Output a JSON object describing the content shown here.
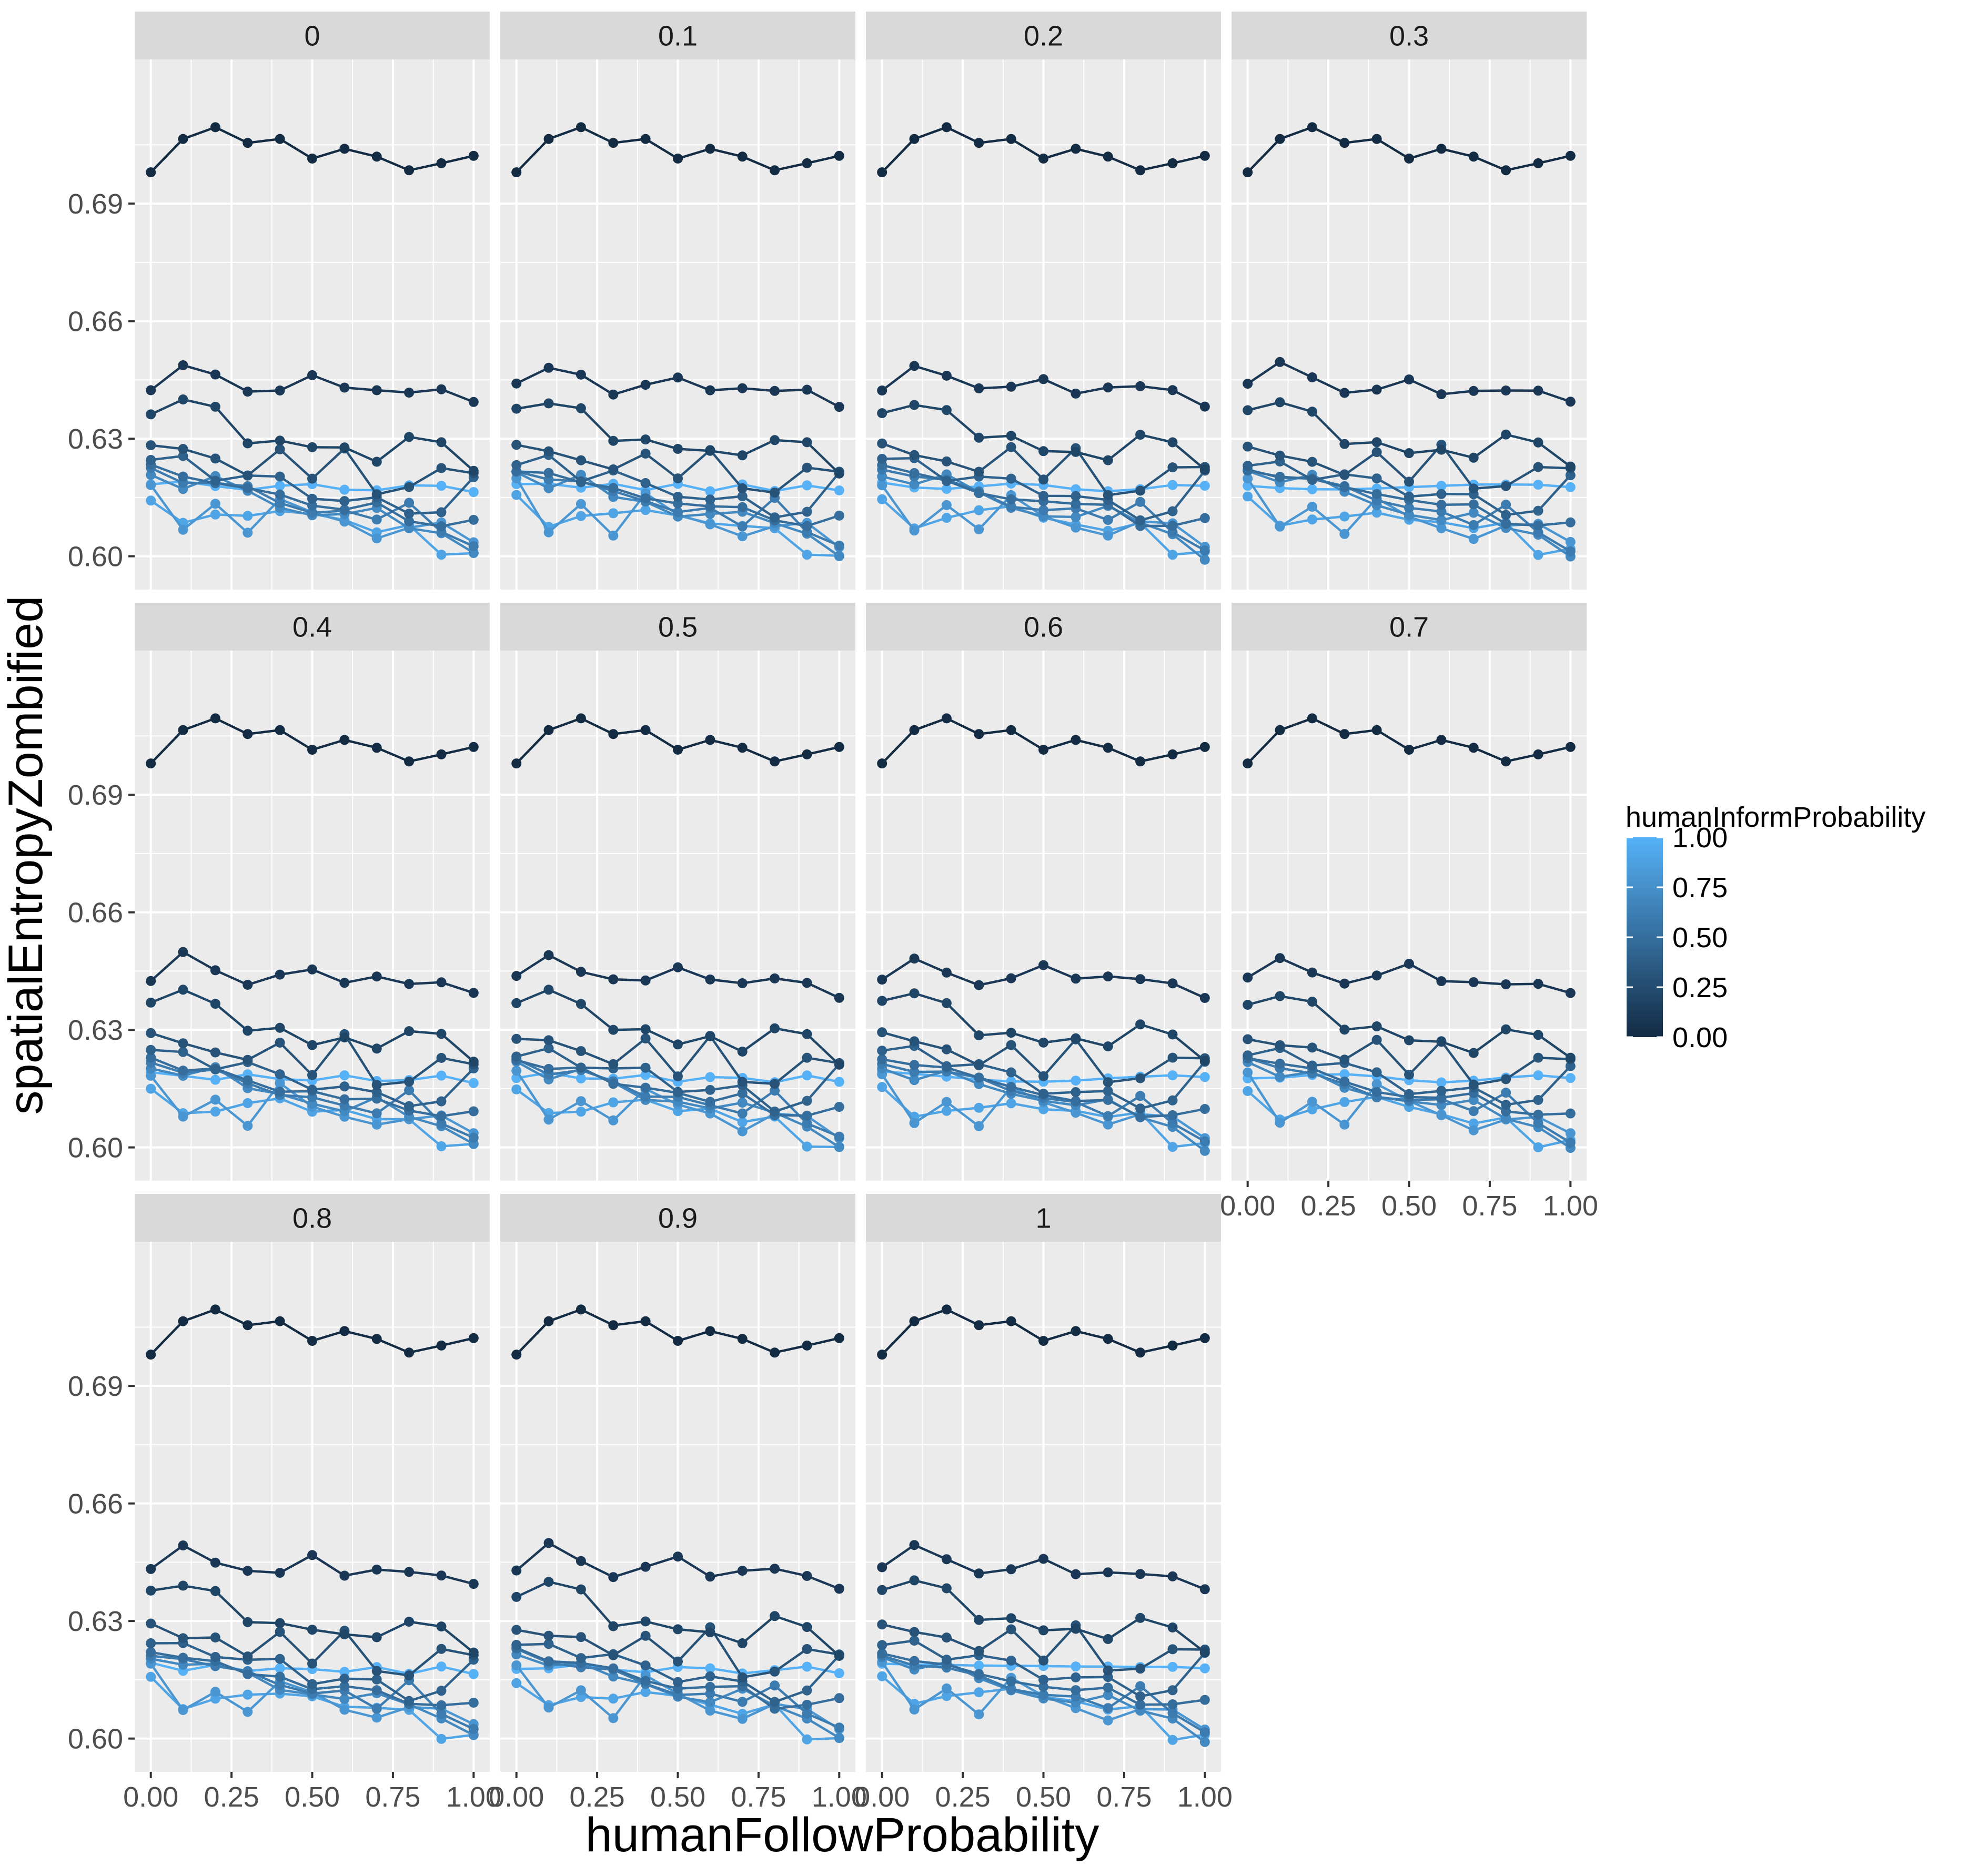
{
  "chart_data": {
    "type": "line",
    "xlabel": "humanFollowProbability",
    "ylabel": "spatialEntropyZombified",
    "x": [
      0,
      0.1,
      0.2,
      0.3,
      0.4,
      0.5,
      0.6,
      0.7,
      0.8,
      0.9,
      1.0
    ],
    "xlim": [
      -0.05,
      1.05
    ],
    "ylim": [
      0.5915,
      0.7268
    ],
    "x_ticks": [
      0,
      0.25,
      0.5,
      0.75,
      1.0
    ],
    "x_tick_labels": [
      "0.00",
      "0.25",
      "0.50",
      "0.75",
      "1.00"
    ],
    "y_ticks": [
      0.6,
      0.63,
      0.66,
      0.69
    ],
    "y_tick_labels": [
      "0.60",
      "0.63",
      "0.66",
      "0.69"
    ],
    "grid": true,
    "facet_variable": "humanInformProbability",
    "facets": [
      "0",
      "0.1",
      "0.2",
      "0.3",
      "0.4",
      "0.5",
      "0.6",
      "0.7",
      "0.8",
      "0.9",
      "1"
    ],
    "legend": {
      "title": "humanInformProbability",
      "position": "right",
      "type": "colorbar",
      "labels": [
        "1.00",
        "0.75",
        "0.50",
        "0.25",
        "0.00"
      ],
      "low_color": "#132B43",
      "high_color": "#56B1F7"
    },
    "series": [
      {
        "color_value": 0.0,
        "values": [
          0.698,
          0.7065,
          0.7095,
          0.7055,
          0.7065,
          0.7015,
          0.704,
          0.702,
          0.6985,
          0.7003,
          0.7022
        ]
      },
      {
        "color_value": 0.1,
        "values": [
          0.6432,
          0.649,
          0.6455,
          0.642,
          0.6432,
          0.646,
          0.6422,
          0.6428,
          0.6425,
          0.642,
          0.6388
        ]
      },
      {
        "color_value": 0.2,
        "values": [
          0.637,
          0.6395,
          0.6375,
          0.6295,
          0.63,
          0.627,
          0.6275,
          0.625,
          0.6305,
          0.6282,
          0.622
        ]
      },
      {
        "color_value": 0.3,
        "values": [
          0.6285,
          0.6265,
          0.625,
          0.6215,
          0.627,
          0.619,
          0.628,
          0.6165,
          0.617,
          0.622,
          0.622
        ]
      },
      {
        "color_value": 0.4,
        "values": [
          0.624,
          0.625,
          0.62,
          0.621,
          0.6195,
          0.6145,
          0.615,
          0.615,
          0.61,
          0.6115,
          0.621
        ]
      },
      {
        "color_value": 0.5,
        "values": [
          0.6225,
          0.6205,
          0.6195,
          0.617,
          0.615,
          0.6135,
          0.6125,
          0.613,
          0.6085,
          0.6085,
          0.6095
        ]
      },
      {
        "color_value": 0.6,
        "values": [
          0.622,
          0.6195,
          0.619,
          0.617,
          0.6135,
          0.612,
          0.6115,
          0.6085,
          0.614,
          0.607,
          0.602
        ]
      },
      {
        "color_value": 0.7,
        "values": [
          0.621,
          0.618,
          0.62,
          0.616,
          0.613,
          0.611,
          0.61,
          0.612,
          0.608,
          0.606,
          0.6
        ]
      },
      {
        "color_value": 0.8,
        "values": [
          0.619,
          0.607,
          0.6125,
          0.606,
          0.6155,
          0.611,
          0.608,
          0.605,
          0.608,
          0.608,
          0.603
        ]
      },
      {
        "color_value": 0.9,
        "values": [
          0.615,
          0.608,
          0.61,
          0.611,
          0.612,
          0.61,
          0.609,
          0.607,
          0.608,
          0.5995,
          0.601
        ]
      },
      {
        "color_value": 1.0,
        "values": [
          0.6185,
          0.6182,
          0.618,
          0.6178,
          0.6177,
          0.6176,
          0.6175,
          0.6175,
          0.6174,
          0.6175,
          0.6172
        ]
      }
    ]
  }
}
